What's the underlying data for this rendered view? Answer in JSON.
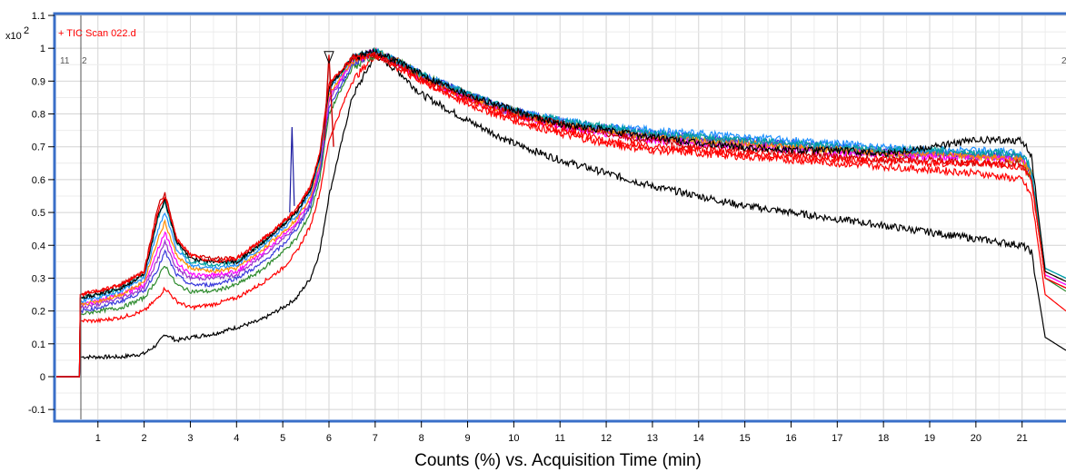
{
  "chart_data": {
    "type": "line",
    "title": "+ TIC Scan 022.d",
    "xlabel": "Counts (%) vs. Acquisition Time (min)",
    "ylabel": "",
    "y_multiplier": "x10",
    "y_multiplier_exp": "2",
    "xlim": [
      0.1,
      21.95
    ],
    "ylim": [
      -0.13,
      1.1
    ],
    "x_ticks": [
      "1",
      "2",
      "3",
      "4",
      "5",
      "6",
      "7",
      "8",
      "9",
      "10",
      "11",
      "12",
      "13",
      "14",
      "15",
      "16",
      "17",
      "18",
      "19",
      "20",
      "21"
    ],
    "y_ticks": [
      "1.1",
      "1",
      "0.9",
      "0.8",
      "0.7",
      "0.6",
      "0.5",
      "0.4",
      "0.3",
      "0.2",
      "0.1",
      "0",
      "-0.1"
    ],
    "grid": true,
    "marker_labels": [
      "11",
      "2",
      "2"
    ],
    "peak_marker_x": 6.0,
    "series": [
      {
        "color": "#000000",
        "x": [
          0.1,
          0.5,
          0.6,
          0.62,
          1,
          1.5,
          2,
          2.3,
          2.45,
          2.7,
          3,
          3.5,
          4,
          4.5,
          5,
          5.3,
          5.6,
          5.8,
          6,
          6.5,
          7,
          7.5,
          8,
          9,
          10,
          11,
          12,
          13,
          14,
          15,
          16,
          17,
          18,
          19,
          20,
          21,
          21.2,
          21.5,
          21.95
        ],
        "y": [
          0.0,
          0.0,
          0.0,
          0.06,
          0.06,
          0.06,
          0.07,
          0.1,
          0.13,
          0.11,
          0.12,
          0.13,
          0.15,
          0.17,
          0.21,
          0.24,
          0.3,
          0.38,
          0.55,
          0.85,
          0.98,
          0.93,
          0.86,
          0.78,
          0.71,
          0.66,
          0.62,
          0.58,
          0.55,
          0.52,
          0.5,
          0.48,
          0.46,
          0.44,
          0.42,
          0.4,
          0.38,
          0.12,
          0.08
        ]
      },
      {
        "color": "#ff0000",
        "x": [
          0.1,
          0.5,
          0.6,
          0.62,
          1,
          1.5,
          2,
          2.3,
          2.45,
          2.7,
          3,
          3.5,
          4,
          4.5,
          5,
          5.3,
          5.6,
          5.8,
          6,
          6.5,
          7,
          7.5,
          8,
          9,
          10,
          11,
          12,
          13,
          14,
          15,
          16,
          17,
          18,
          19,
          20,
          21,
          21.2,
          21.5,
          21.95
        ],
        "y": [
          0.0,
          0.0,
          0.0,
          0.17,
          0.17,
          0.18,
          0.2,
          0.24,
          0.27,
          0.23,
          0.21,
          0.22,
          0.24,
          0.28,
          0.33,
          0.38,
          0.46,
          0.56,
          0.72,
          0.9,
          0.98,
          0.95,
          0.9,
          0.83,
          0.78,
          0.74,
          0.71,
          0.69,
          0.68,
          0.67,
          0.66,
          0.65,
          0.64,
          0.63,
          0.62,
          0.6,
          0.55,
          0.25,
          0.2
        ]
      },
      {
        "color": "#2e8b2e",
        "x": [
          0.1,
          0.5,
          0.6,
          0.62,
          1,
          1.5,
          2,
          2.3,
          2.45,
          2.7,
          3,
          3.5,
          4,
          4.5,
          5,
          5.3,
          5.6,
          5.8,
          6,
          6.5,
          7,
          7.5,
          8,
          9,
          10,
          11,
          12,
          13,
          14,
          15,
          16,
          17,
          18,
          19,
          20,
          21,
          21.2,
          21.5,
          21.95
        ],
        "y": [
          0.0,
          0.0,
          0.0,
          0.19,
          0.2,
          0.21,
          0.24,
          0.3,
          0.34,
          0.28,
          0.26,
          0.26,
          0.28,
          0.32,
          0.38,
          0.42,
          0.5,
          0.6,
          0.8,
          0.94,
          0.98,
          0.96,
          0.92,
          0.86,
          0.81,
          0.77,
          0.75,
          0.73,
          0.72,
          0.71,
          0.7,
          0.69,
          0.68,
          0.68,
          0.67,
          0.66,
          0.6,
          0.3,
          0.26
        ]
      },
      {
        "color": "#3a3adb",
        "x": [
          0.1,
          0.5,
          0.6,
          0.62,
          1,
          1.5,
          2,
          2.3,
          2.45,
          2.7,
          3,
          3.5,
          4,
          4.5,
          5,
          5.3,
          5.6,
          5.8,
          6,
          6.5,
          7,
          7.5,
          8,
          9,
          10,
          11,
          12,
          13,
          14,
          15,
          16,
          17,
          18,
          19,
          20,
          21,
          21.2,
          21.5,
          21.95
        ],
        "y": [
          0.0,
          0.0,
          0.0,
          0.2,
          0.21,
          0.23,
          0.26,
          0.33,
          0.38,
          0.31,
          0.28,
          0.28,
          0.3,
          0.34,
          0.4,
          0.45,
          0.52,
          0.62,
          0.82,
          0.95,
          0.99,
          0.96,
          0.92,
          0.86,
          0.81,
          0.78,
          0.76,
          0.74,
          0.73,
          0.72,
          0.71,
          0.7,
          0.69,
          0.68,
          0.68,
          0.67,
          0.62,
          0.3,
          0.27
        ]
      },
      {
        "color": "#9933cc",
        "x": [
          0.1,
          0.5,
          0.6,
          0.62,
          1,
          1.5,
          2,
          2.3,
          2.45,
          2.7,
          3,
          3.5,
          4,
          4.5,
          5,
          5.3,
          5.6,
          5.8,
          6,
          6.5,
          7,
          7.5,
          8,
          9,
          10,
          11,
          12,
          13,
          14,
          15,
          16,
          17,
          18,
          19,
          20,
          21,
          21.2,
          21.5,
          21.95
        ],
        "y": [
          0.0,
          0.0,
          0.0,
          0.21,
          0.22,
          0.24,
          0.27,
          0.36,
          0.41,
          0.33,
          0.3,
          0.3,
          0.31,
          0.36,
          0.42,
          0.46,
          0.53,
          0.63,
          0.84,
          0.96,
          0.99,
          0.96,
          0.91,
          0.85,
          0.8,
          0.77,
          0.75,
          0.73,
          0.72,
          0.71,
          0.7,
          0.69,
          0.68,
          0.68,
          0.67,
          0.67,
          0.62,
          0.31,
          0.28
        ]
      },
      {
        "color": "#ff00ff",
        "x": [
          0.1,
          0.5,
          0.6,
          0.62,
          1,
          1.5,
          2,
          2.3,
          2.45,
          2.7,
          3,
          3.5,
          4,
          4.5,
          5,
          5.3,
          5.6,
          5.8,
          6,
          6.5,
          7,
          7.5,
          8,
          9,
          10,
          11,
          12,
          13,
          14,
          15,
          16,
          17,
          18,
          19,
          20,
          21,
          21.2,
          21.5,
          21.95
        ],
        "y": [
          0.0,
          0.0,
          0.0,
          0.22,
          0.23,
          0.25,
          0.28,
          0.39,
          0.44,
          0.35,
          0.31,
          0.31,
          0.32,
          0.37,
          0.43,
          0.47,
          0.54,
          0.64,
          0.85,
          0.96,
          0.99,
          0.95,
          0.91,
          0.85,
          0.8,
          0.76,
          0.74,
          0.72,
          0.71,
          0.7,
          0.69,
          0.68,
          0.68,
          0.67,
          0.67,
          0.66,
          0.62,
          0.31,
          0.28
        ]
      },
      {
        "color": "#ff8c00",
        "x": [
          0.1,
          0.5,
          0.6,
          0.62,
          1,
          1.5,
          2,
          2.3,
          2.45,
          2.7,
          3,
          3.5,
          4,
          4.5,
          5,
          5.3,
          5.6,
          5.8,
          6,
          6.5,
          7,
          7.5,
          8,
          9,
          10,
          11,
          12,
          13,
          14,
          15,
          16,
          17,
          18,
          19,
          20,
          21,
          21.2,
          21.5,
          21.95
        ],
        "y": [
          0.0,
          0.0,
          0.0,
          0.22,
          0.23,
          0.25,
          0.29,
          0.42,
          0.47,
          0.37,
          0.33,
          0.32,
          0.33,
          0.38,
          0.44,
          0.48,
          0.55,
          0.65,
          0.86,
          0.96,
          0.99,
          0.96,
          0.91,
          0.85,
          0.8,
          0.77,
          0.75,
          0.73,
          0.72,
          0.71,
          0.7,
          0.69,
          0.68,
          0.68,
          0.67,
          0.66,
          0.62,
          0.32,
          0.29
        ]
      },
      {
        "color": "#1e90ff",
        "x": [
          0.1,
          0.5,
          0.6,
          0.62,
          1,
          1.5,
          2,
          2.3,
          2.45,
          2.7,
          3,
          3.5,
          4,
          4.5,
          5,
          5.3,
          5.6,
          5.8,
          6,
          6.5,
          7,
          7.5,
          8,
          9,
          10,
          11,
          12,
          13,
          14,
          15,
          16,
          17,
          18,
          19,
          20,
          21,
          21.2,
          21.5,
          21.95
        ],
        "y": [
          0.0,
          0.0,
          0.0,
          0.23,
          0.24,
          0.26,
          0.3,
          0.45,
          0.5,
          0.39,
          0.34,
          0.33,
          0.34,
          0.39,
          0.45,
          0.49,
          0.56,
          0.66,
          0.87,
          0.97,
          0.99,
          0.96,
          0.92,
          0.86,
          0.81,
          0.78,
          0.76,
          0.75,
          0.74,
          0.73,
          0.72,
          0.71,
          0.7,
          0.69,
          0.69,
          0.68,
          0.63,
          0.33,
          0.3
        ]
      },
      {
        "color": "#00a0a0",
        "x": [
          0.1,
          0.5,
          0.6,
          0.62,
          1,
          1.5,
          2,
          2.3,
          2.45,
          2.7,
          3,
          3.5,
          4,
          4.5,
          5,
          5.3,
          5.6,
          5.8,
          6,
          6.5,
          7,
          7.5,
          8,
          9,
          10,
          11,
          12,
          13,
          14,
          15,
          16,
          17,
          18,
          19,
          20,
          21,
          21.2,
          21.5,
          21.95
        ],
        "y": [
          0.0,
          0.0,
          0.0,
          0.24,
          0.25,
          0.27,
          0.31,
          0.48,
          0.53,
          0.41,
          0.35,
          0.34,
          0.35,
          0.4,
          0.46,
          0.5,
          0.57,
          0.67,
          0.88,
          0.97,
          0.99,
          0.96,
          0.92,
          0.86,
          0.81,
          0.78,
          0.76,
          0.74,
          0.73,
          0.72,
          0.71,
          0.7,
          0.69,
          0.69,
          0.68,
          0.68,
          0.63,
          0.33,
          0.3
        ]
      },
      {
        "color": "#cc0000",
        "x": [
          0.1,
          0.5,
          0.6,
          0.62,
          1,
          1.5,
          2,
          2.3,
          2.45,
          2.7,
          3,
          3.5,
          4,
          4.5,
          5,
          5.3,
          5.6,
          5.8,
          6,
          6.5,
          7,
          7.5,
          8,
          9,
          10,
          11,
          12,
          13,
          14,
          15,
          16,
          17,
          18,
          19,
          20,
          21,
          21.2,
          21.5,
          21.95
        ],
        "y": [
          0.0,
          0.0,
          0.0,
          0.25,
          0.26,
          0.28,
          0.32,
          0.52,
          0.56,
          0.42,
          0.37,
          0.36,
          0.36,
          0.41,
          0.47,
          0.51,
          0.58,
          0.68,
          0.89,
          0.97,
          0.98,
          0.95,
          0.91,
          0.85,
          0.8,
          0.77,
          0.74,
          0.72,
          0.7,
          0.69,
          0.68,
          0.67,
          0.66,
          0.66,
          0.65,
          0.65,
          0.6,
          0.3,
          0.27
        ]
      },
      {
        "color": "#000000",
        "x": [
          0.1,
          0.5,
          0.6,
          0.62,
          1,
          1.5,
          2,
          2.3,
          2.45,
          2.7,
          3,
          3.5,
          4,
          4.5,
          5,
          5.3,
          5.6,
          5.8,
          6,
          6.5,
          7,
          7.5,
          8,
          9,
          10,
          11,
          12,
          13,
          14,
          15,
          16,
          17,
          18,
          19,
          20,
          21,
          21.2,
          21.5,
          21.95
        ],
        "y": [
          0.0,
          0.0,
          0.0,
          0.24,
          0.25,
          0.27,
          0.31,
          0.49,
          0.54,
          0.41,
          0.36,
          0.35,
          0.35,
          0.4,
          0.46,
          0.5,
          0.57,
          0.67,
          0.88,
          0.97,
          0.99,
          0.96,
          0.92,
          0.86,
          0.81,
          0.77,
          0.75,
          0.73,
          0.71,
          0.7,
          0.69,
          0.69,
          0.68,
          0.7,
          0.72,
          0.72,
          0.67,
          0.32,
          0.29
        ]
      },
      {
        "color": "#ff0000",
        "x": [
          0.1,
          0.5,
          0.6,
          0.62,
          1,
          1.5,
          2,
          2.3,
          2.45,
          2.7,
          3,
          3.5,
          4,
          4.5,
          5,
          5.3,
          5.6,
          5.8,
          6,
          6.5,
          7,
          7.5,
          8,
          9,
          10,
          11,
          12,
          13,
          14,
          15,
          16,
          17,
          18,
          19,
          20,
          21,
          21.2,
          21.5,
          21.95
        ],
        "y": [
          0.0,
          0.0,
          0.0,
          0.25,
          0.26,
          0.28,
          0.32,
          0.5,
          0.55,
          0.42,
          0.37,
          0.35,
          0.36,
          0.41,
          0.47,
          0.51,
          0.58,
          0.68,
          0.89,
          0.97,
          0.98,
          0.94,
          0.9,
          0.84,
          0.79,
          0.75,
          0.72,
          0.7,
          0.69,
          0.68,
          0.67,
          0.66,
          0.66,
          0.65,
          0.65,
          0.64,
          0.6,
          0.3,
          0.27
        ]
      }
    ]
  },
  "colors": {
    "frame": "#3a6fc8",
    "grid": "#d4d4d4",
    "title": "#ff0000"
  }
}
